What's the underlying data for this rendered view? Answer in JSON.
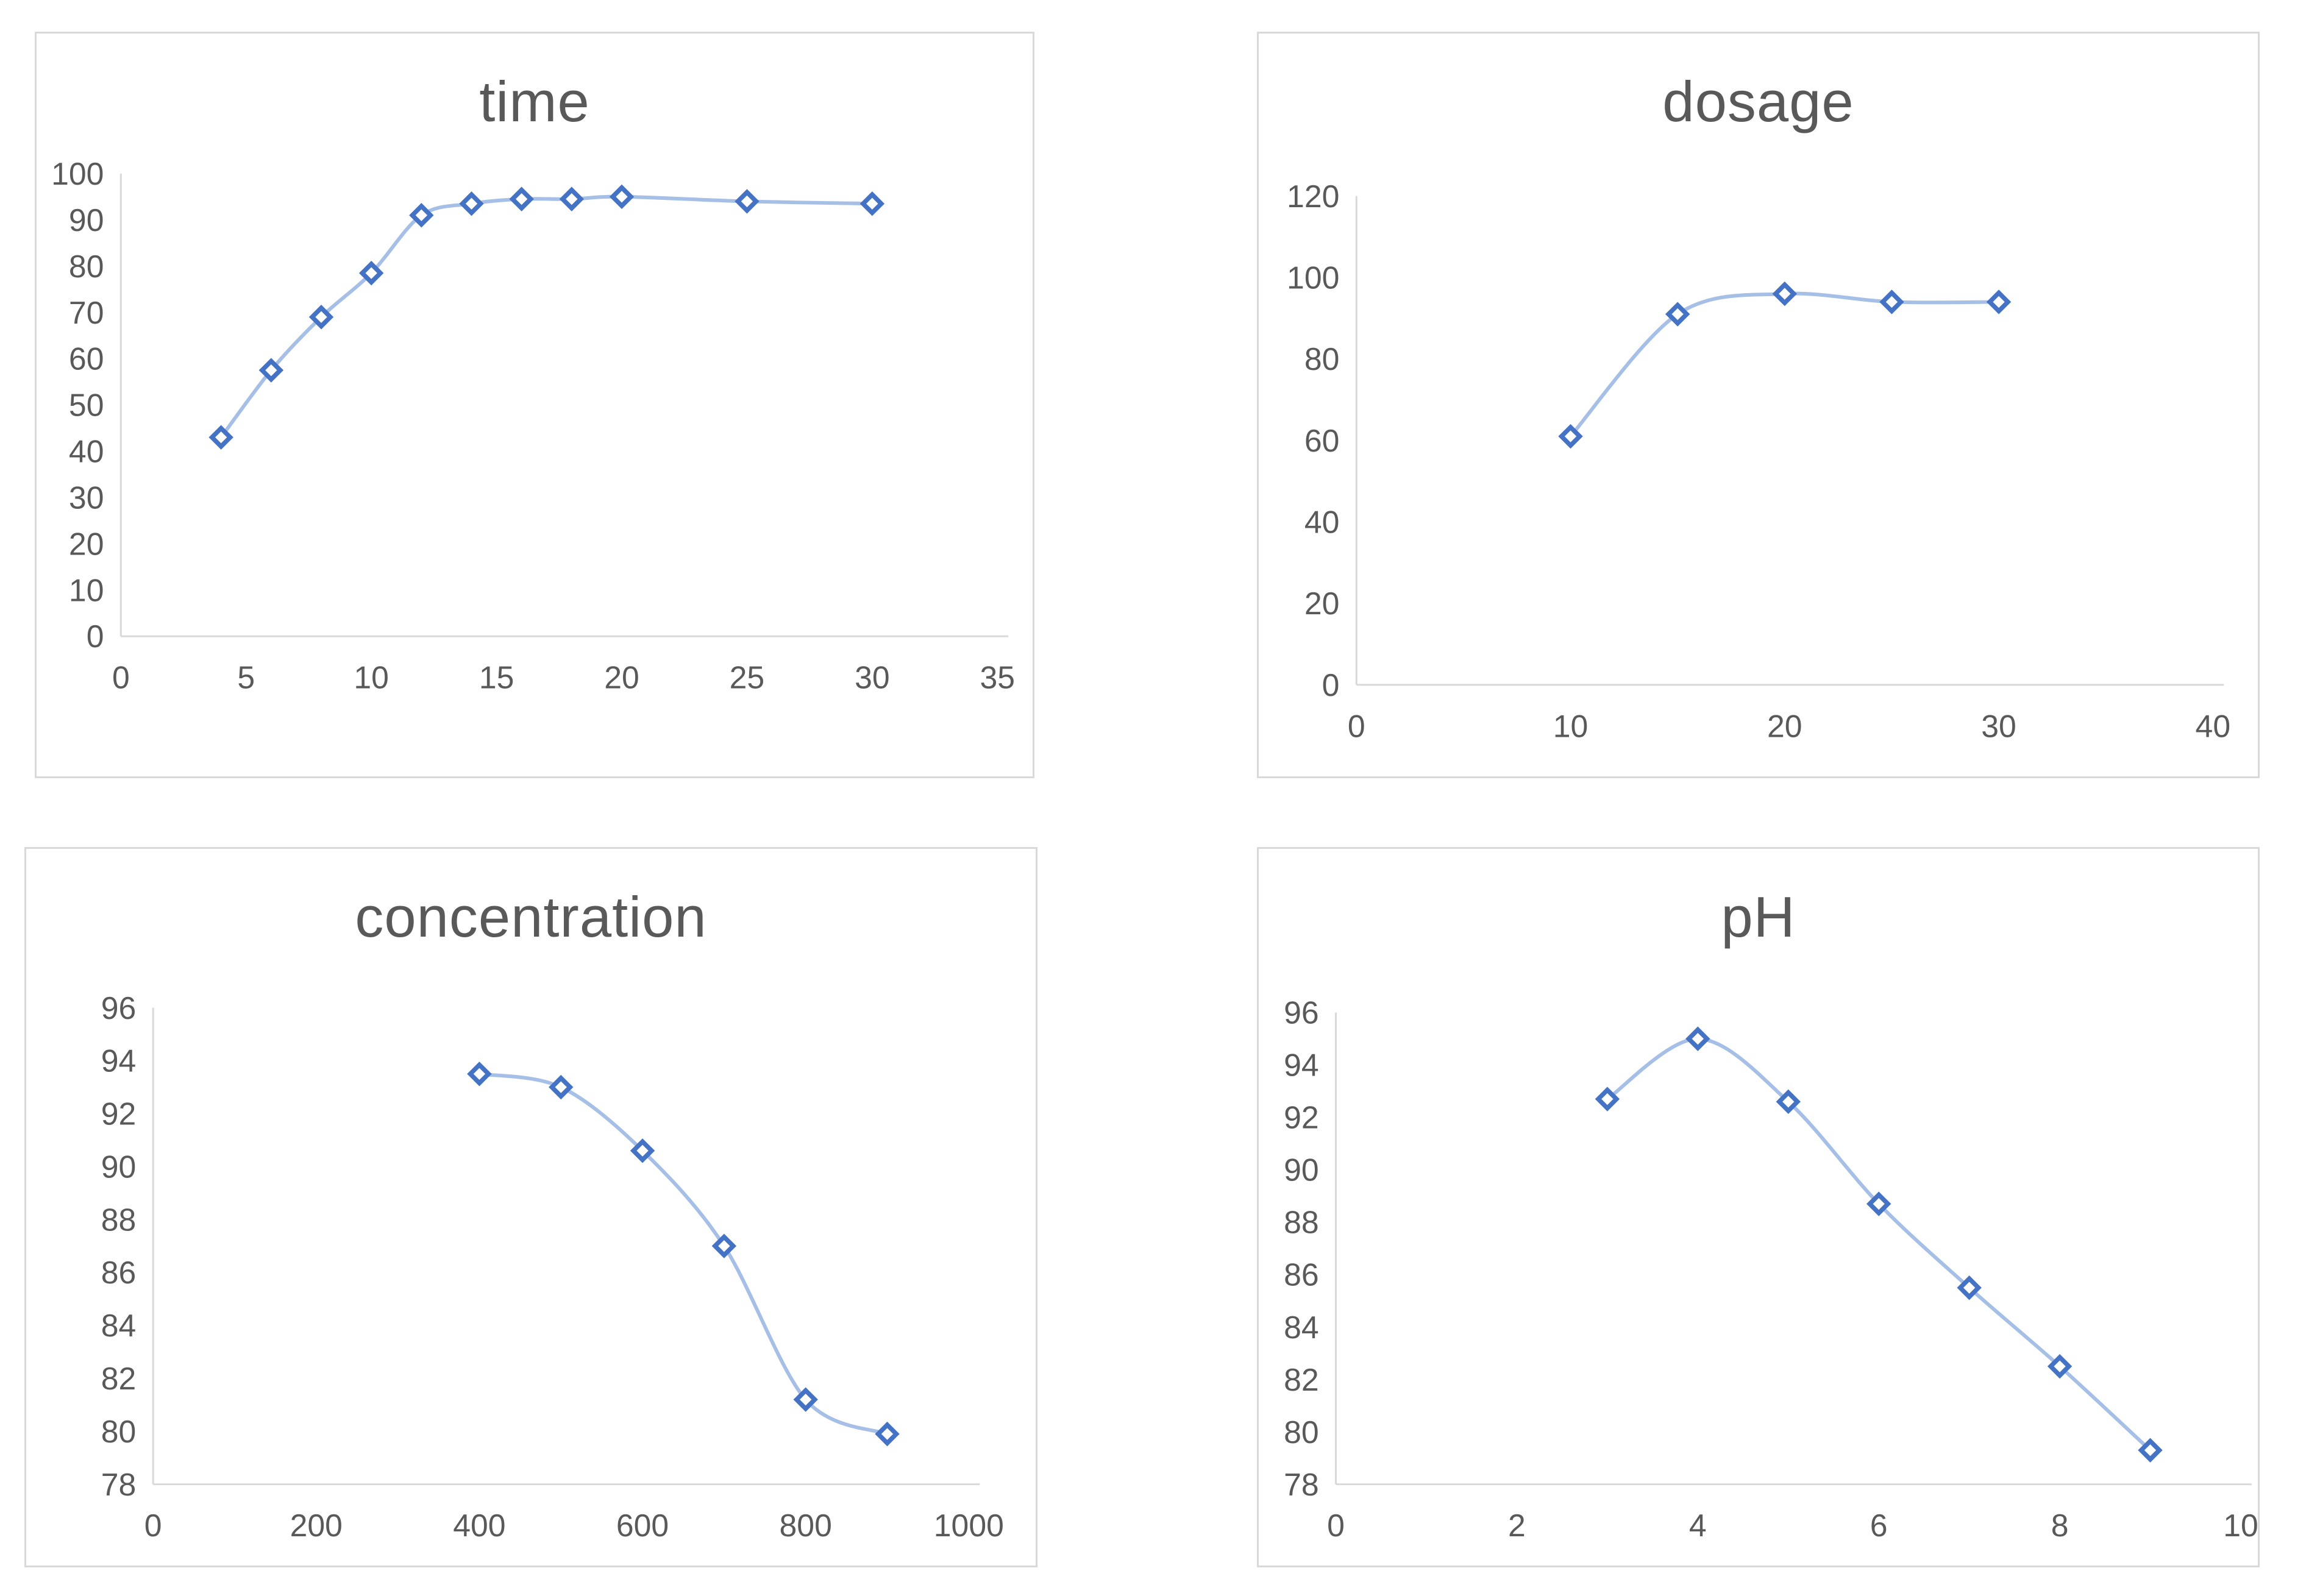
{
  "colors": {
    "marker": "#4472C4",
    "line": "#A6BFE6",
    "axis": "#D9D9D9",
    "tick_text": "#595959",
    "title_text": "#595959",
    "panel_border": "#D9D9D9",
    "background": "#FFFFFF"
  },
  "chart_data": [
    {
      "type": "line",
      "title": "time",
      "x": [
        4,
        6,
        8,
        10,
        12,
        14,
        16,
        18,
        20,
        25,
        30
      ],
      "y": [
        43,
        57.5,
        69,
        78.5,
        91,
        93.5,
        94.5,
        94.5,
        95,
        94,
        93.5
      ],
      "xlabel": "",
      "ylabel": "",
      "xlim": [
        0,
        35
      ],
      "ylim": [
        0,
        100
      ],
      "x_ticks": [
        0,
        5,
        10,
        15,
        20,
        25,
        30,
        35
      ],
      "y_ticks": [
        0,
        10,
        20,
        30,
        40,
        50,
        60,
        70,
        80,
        90,
        100
      ],
      "grid": false,
      "legend": "none",
      "marker": "open-diamond",
      "line_style": "smooth"
    },
    {
      "type": "line",
      "title": "dosage",
      "x": [
        10,
        15,
        20,
        25,
        30
      ],
      "y": [
        61,
        91,
        96,
        94,
        94
      ],
      "xlabel": "",
      "ylabel": "",
      "xlim": [
        0,
        40
      ],
      "ylim": [
        0,
        120
      ],
      "x_ticks": [
        0,
        10,
        20,
        30,
        40
      ],
      "y_ticks": [
        0,
        20,
        40,
        60,
        80,
        100,
        120
      ],
      "grid": false,
      "legend": "none",
      "marker": "open-diamond",
      "line_style": "smooth"
    },
    {
      "type": "line",
      "title": "concentration",
      "x": [
        400,
        500,
        600,
        700,
        800,
        900
      ],
      "y": [
        93.5,
        93,
        90.6,
        87,
        81.2,
        79.9
      ],
      "xlabel": "",
      "ylabel": "",
      "xlim": [
        0,
        1000
      ],
      "ylim": [
        78,
        96
      ],
      "x_ticks": [
        0,
        200,
        400,
        600,
        800,
        1000
      ],
      "y_ticks": [
        78,
        80,
        82,
        84,
        86,
        88,
        90,
        92,
        94,
        96
      ],
      "grid": false,
      "legend": "none",
      "marker": "open-diamond",
      "line_style": "smooth"
    },
    {
      "type": "line",
      "title": "pH",
      "x": [
        3,
        4,
        5,
        6,
        7,
        8,
        9
      ],
      "y": [
        92.7,
        95,
        92.6,
        88.7,
        85.5,
        82.5,
        79.3
      ],
      "xlabel": "",
      "ylabel": "",
      "xlim": [
        0,
        10
      ],
      "ylim": [
        78,
        96
      ],
      "x_ticks": [
        0,
        2,
        4,
        6,
        8,
        10
      ],
      "y_ticks": [
        78,
        80,
        82,
        84,
        86,
        88,
        90,
        92,
        94,
        96
      ],
      "grid": false,
      "legend": "none",
      "marker": "open-diamond",
      "line_style": "smooth"
    }
  ]
}
